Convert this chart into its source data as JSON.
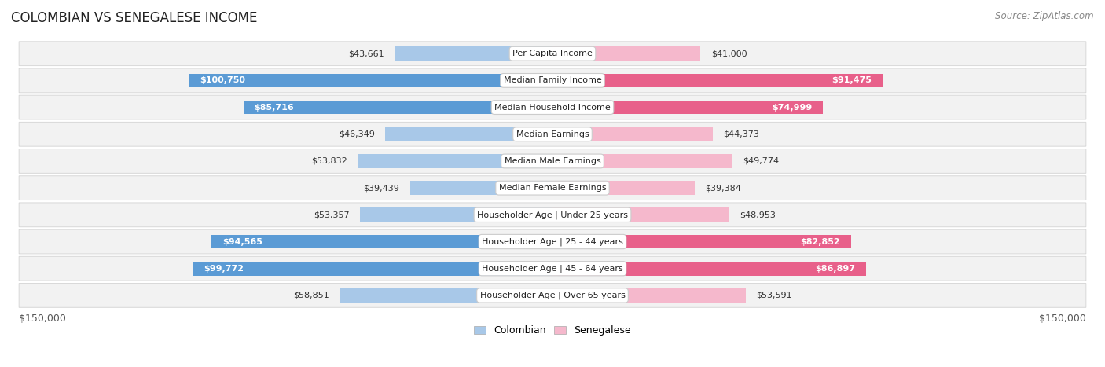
{
  "title": "COLOMBIAN VS SENEGALESE INCOME",
  "source": "Source: ZipAtlas.com",
  "categories": [
    "Per Capita Income",
    "Median Family Income",
    "Median Household Income",
    "Median Earnings",
    "Median Male Earnings",
    "Median Female Earnings",
    "Householder Age | Under 25 years",
    "Householder Age | 25 - 44 years",
    "Householder Age | 45 - 64 years",
    "Householder Age | Over 65 years"
  ],
  "colombian_values": [
    43661,
    100750,
    85716,
    46349,
    53832,
    39439,
    53357,
    94565,
    99772,
    58851
  ],
  "senegalese_values": [
    41000,
    91475,
    74999,
    44373,
    49774,
    39384,
    48953,
    82852,
    86897,
    53591
  ],
  "colombian_color_light": "#a8c8e8",
  "colombian_color_dark": "#5b9bd5",
  "senegalese_color_light": "#f5b8cc",
  "senegalese_color_dark": "#e8608a",
  "row_bg_color": "#f2f2f2",
  "row_border_color": "#d8d8d8",
  "max_value": 150000,
  "xlabel_left": "$150,000",
  "xlabel_right": "$150,000",
  "legend_colombian": "Colombian",
  "legend_senegalese": "Senegalese",
  "title_fontsize": 12,
  "source_fontsize": 8.5,
  "bar_label_fontsize": 8,
  "category_fontsize": 8,
  "axis_label_fontsize": 9,
  "col_inside_threshold": 65000,
  "sen_inside_threshold": 65000
}
